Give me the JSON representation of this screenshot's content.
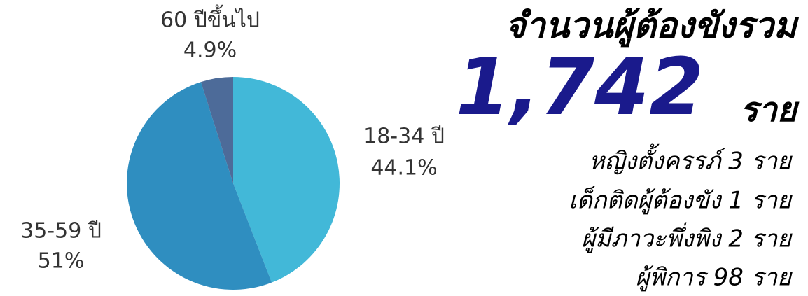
{
  "chart_data": {
    "type": "pie",
    "categories": [
      "18-34 ปี",
      "35-59 ปี",
      "60 ปีขึ้นไป"
    ],
    "values": [
      44.1,
      51,
      4.9
    ],
    "value_labels": [
      "44.1%",
      "51%",
      "4.9%"
    ],
    "colors": [
      "#42b8d8",
      "#2f8ec0",
      "#4d6b99"
    ]
  },
  "summary": {
    "title": "จำนวนผู้ต้องขังรวม",
    "total": "1,742",
    "unit": "ราย",
    "lines": [
      "หญิงตั้งครรภ์ 3 ราย",
      "เด็กติดผู้ต้องขัง 1 ราย",
      "ผู้มีภาวะพึ่งพิง 2 ราย",
      "ผู้พิการ 98 ราย"
    ]
  }
}
